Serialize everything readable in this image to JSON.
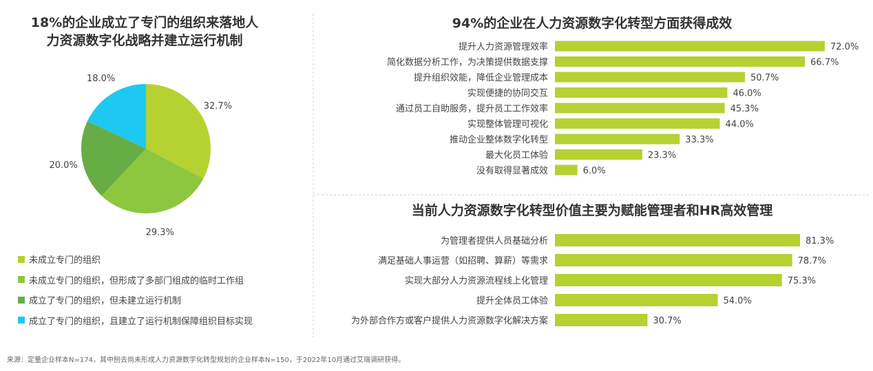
{
  "source": "来源：定量企业样本N=174，其中刨去尚未形成人力资源数字化转型规划的企业样本N=150，于2022年10月通过艾瑞调研获得。",
  "chart_data": [
    {
      "type": "pie",
      "title": "18%的企业成立了专门的组织来落地人力资源数字化战略并建立运行机制",
      "title_lines": [
        "18%的企业成立了专门的组织来落地人",
        "力资源数字化战略并建立运行机制"
      ],
      "slices": [
        {
          "name": "未成立专门的组织",
          "value": 32.7,
          "label": "32.7%",
          "color": "#b5d132"
        },
        {
          "name": "未成立专门的组织，但形成了多部门组成的临时工作组",
          "value": 29.3,
          "label": "29.3%",
          "color": "#8dc63f"
        },
        {
          "name": "成立了专门的组织，但未建立运行机制",
          "value": 20.0,
          "label": "20.0%",
          "color": "#66ad45"
        },
        {
          "name": "成立了专门的组织，且建立了运行机制保障组织目标实现",
          "value": 18.0,
          "label": "18.0%",
          "color": "#1ec8f0"
        }
      ],
      "legend": "bottom-left"
    },
    {
      "type": "bar",
      "orientation": "horizontal",
      "title": "94%的企业在人力资源数字化转型方面获得成效",
      "color": "#b5d132",
      "categories": [
        "提升人力资源管理效率",
        "简化数据分析工作，为决策提供数据支撑",
        "提升组织效能，降低企业管理成本",
        "实现便捷的协同交互",
        "通过员工自助服务，提升员工工作效率",
        "实现整体管理可视化",
        "推动企业整体数字化转型",
        "最大化员工体验",
        "没有取得显著成效"
      ],
      "values": [
        72.0,
        66.7,
        50.7,
        46.0,
        45.3,
        44.0,
        33.3,
        23.3,
        6.0
      ],
      "labels": [
        "72.0%",
        "66.7%",
        "50.7%",
        "46.0%",
        "45.3%",
        "44.0%",
        "33.3%",
        "23.3%",
        "6.0%"
      ]
    },
    {
      "type": "bar",
      "orientation": "horizontal",
      "title": "当前人力资源数字化转型价值主要为赋能管理者和HR高效管理",
      "color": "#b5d132",
      "categories": [
        "为管理者提供人员基础分析",
        "满足基础人事运营（如招聘、算薪）等需求",
        "实现大部分人力资源流程线上化管理",
        "提升全体员工体验",
        "为外部合作方或客户提供人力资源数字化解决方案"
      ],
      "values": [
        81.3,
        78.7,
        75.3,
        54.0,
        30.7
      ],
      "labels": [
        "81.3%",
        "78.7%",
        "75.3%",
        "54.0%",
        "30.7%"
      ]
    }
  ]
}
